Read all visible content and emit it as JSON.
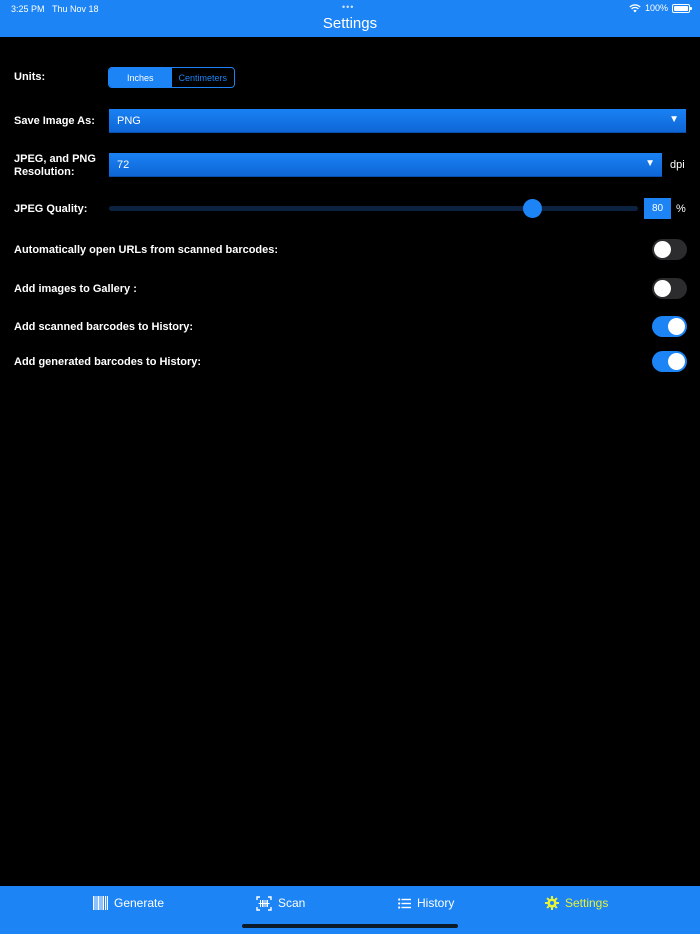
{
  "status_bar": {
    "time": "3:25 PM",
    "date": "Thu Nov 18",
    "battery": "100%"
  },
  "header": {
    "title": "Settings"
  },
  "units": {
    "label": "Units:",
    "options": [
      "Inches",
      "Centimeters"
    ],
    "selected": "Inches"
  },
  "save_image": {
    "label": "Save Image As:",
    "value": "PNG"
  },
  "resolution": {
    "label_line1": "JPEG, and PNG",
    "label_line2": "Resolution:",
    "value": "72",
    "unit": "dpi"
  },
  "jpeg_quality": {
    "label": "JPEG Quality:",
    "value": "80",
    "unit": "%",
    "fraction": 0.8
  },
  "toggles": {
    "auto_open_urls": {
      "label": "Automatically open URLs from scanned barcodes:",
      "on": false
    },
    "add_to_gallery": {
      "label": "Add images to Gallery :",
      "on": false
    },
    "scanned_history": {
      "label": "Add scanned barcodes to History:",
      "on": true
    },
    "generated_history": {
      "label": "Add generated barcodes to History:",
      "on": true
    }
  },
  "tabs": [
    {
      "label": "Generate",
      "icon": "barcode-icon"
    },
    {
      "label": "Scan",
      "icon": "scan-icon"
    },
    {
      "label": "History",
      "icon": "list-icon"
    },
    {
      "label": "Settings",
      "icon": "gear-icon",
      "active": true
    }
  ],
  "colors": {
    "accent": "#1c84f5",
    "active_tab": "#e6f23a",
    "background": "#000000"
  }
}
